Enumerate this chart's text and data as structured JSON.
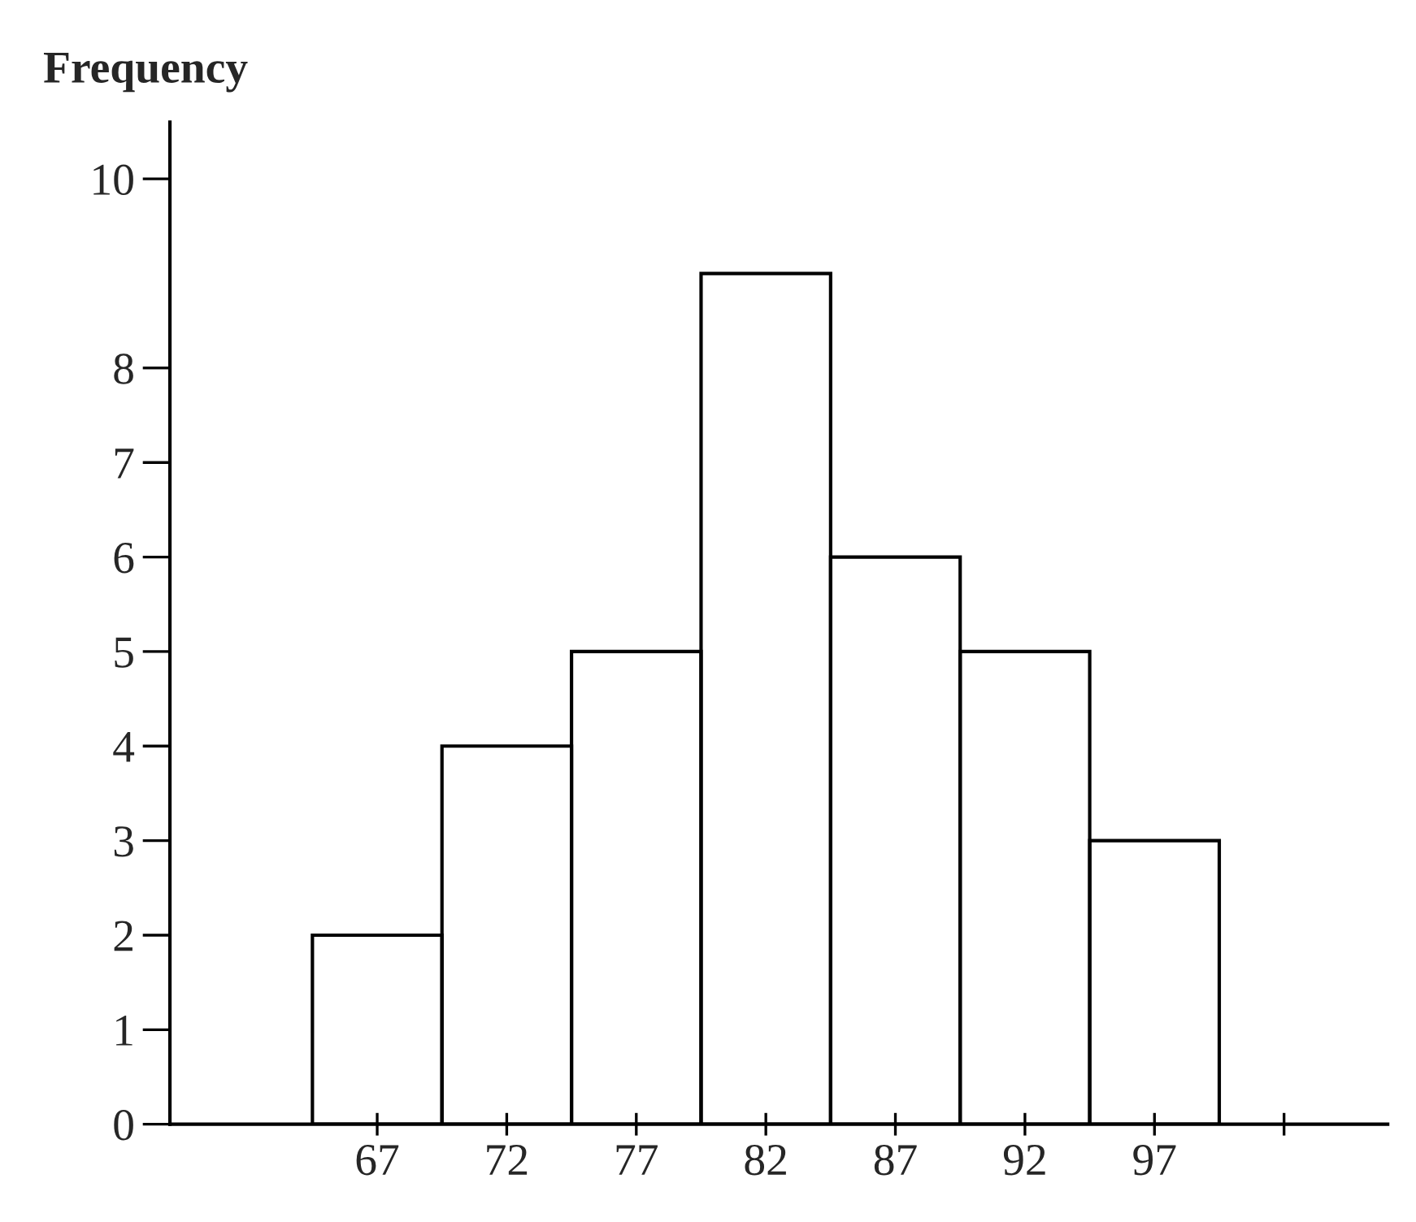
{
  "chart_data": {
    "type": "histogram",
    "ylabel": "Frequency",
    "bins": [
      64.5,
      69.5,
      74.5,
      79.5,
      84.5,
      89.5,
      94.5,
      99.5
    ],
    "values": [
      2,
      4,
      5,
      9,
      6,
      5,
      3
    ],
    "color": "#000000",
    "xlim": [
      59,
      106
    ],
    "ylim": [
      0,
      10.6
    ],
    "xticks": [
      67,
      72,
      77,
      82,
      87,
      92,
      97,
      {
        "value": 102,
        "label": null
      }
    ],
    "yticks": [
      0,
      1,
      2,
      3,
      4,
      5,
      6,
      7,
      8,
      10
    ],
    "grid": false,
    "legend": false
  }
}
